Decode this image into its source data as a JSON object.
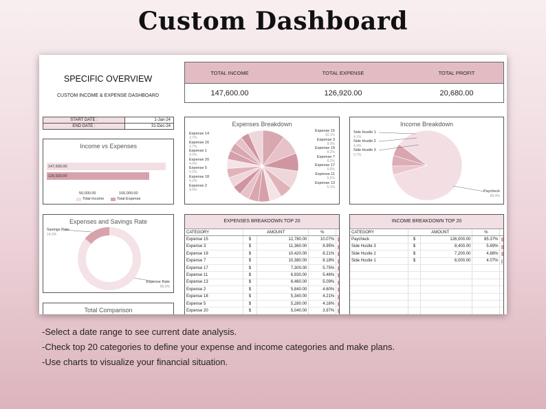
{
  "page_title": "Custom Dashboard",
  "overview": {
    "title": "SPECIFIC OVERVIEW",
    "subtitle": "CUSTOM INCOME & EXPENSE DASHBOARD"
  },
  "dates": {
    "start_label": "START DATE :",
    "start_value": "1-Jan-24",
    "end_label": "END DATE :",
    "end_value": "31-Dec-24"
  },
  "totals": {
    "income_label": "TOTAL INCOME",
    "income_value": "147,600.00",
    "expense_label": "TOTAL EXPENSE",
    "expense_value": "126,920.00",
    "profit_label": "TOTAL PROFIT",
    "profit_value": "20,680.00"
  },
  "income_vs_expenses": {
    "title": "Income vs Expenses",
    "bars": [
      {
        "label": "147,600.00",
        "value": 147600
      },
      {
        "label": "126,920.00",
        "value": 126920
      }
    ],
    "ticks": [
      "50,000.00",
      "100,000.00"
    ],
    "legend": [
      "Total Income",
      "Total Expense"
    ]
  },
  "expenses_breakdown": {
    "title": "Expenses Breakdown",
    "left_labels": [
      {
        "name": "Expense 14",
        "pct": "3.7%"
      },
      {
        "name": "Expense 16",
        "pct": "3.7%"
      },
      {
        "name": "Expense 1",
        "pct": "4.0%"
      },
      {
        "name": "Expense 20",
        "pct": "4.0%"
      },
      {
        "name": "Expense 5",
        "pct": "4.2%"
      },
      {
        "name": "Expense 18",
        "pct": "4.2%"
      },
      {
        "name": "Expense 2",
        "pct": "4.6%"
      }
    ],
    "right_labels": [
      {
        "name": "Expense 15",
        "pct": "10.1%"
      },
      {
        "name": "Expense 3",
        "pct": "9.0%"
      },
      {
        "name": "Expense 19",
        "pct": "8.2%"
      },
      {
        "name": "Expense 7",
        "pct": "8.2%"
      },
      {
        "name": "Expense 17",
        "pct": "5.8%"
      },
      {
        "name": "Expense 11",
        "pct": "5.5%"
      },
      {
        "name": "Expense 13",
        "pct": "5.1%"
      }
    ]
  },
  "income_breakdown": {
    "title": "Income Breakdown",
    "labels": [
      {
        "name": "Side Hustle 1",
        "pct": "4.1%"
      },
      {
        "name": "Side Hustle 2",
        "pct": "4.9%"
      },
      {
        "name": "Side Hustle 3",
        "pct": "5.7%"
      },
      {
        "name": "Paycheck",
        "pct": "85.4%"
      }
    ]
  },
  "savings": {
    "title": "Expenses and Savings Rate",
    "savings_label": "Savings Rate",
    "savings_pct": "14.0%",
    "savings_value": 14.0,
    "expense_label": "Expense Rate",
    "expense_pct": "86.0%"
  },
  "total_comparison": {
    "title": "Total Comparison"
  },
  "expenses_table": {
    "title": "EXPENSES BREAKDOWN TOP 20",
    "headers": [
      "CATEGORY",
      "AMOUNT",
      "%"
    ],
    "rows": [
      {
        "cat": "Expense 15",
        "cur": "$",
        "amt": "12,780.00",
        "pct": "10.07%",
        "v": 10.07
      },
      {
        "cat": "Expense 3",
        "cur": "$",
        "amt": "11,360.00",
        "pct": "8.95%",
        "v": 8.95
      },
      {
        "cat": "Expense 19",
        "cur": "$",
        "amt": "10,420.00",
        "pct": "8.21%",
        "v": 8.21
      },
      {
        "cat": "Expense 7",
        "cur": "$",
        "amt": "10,380.00",
        "pct": "8.18%",
        "v": 8.18
      },
      {
        "cat": "Expense 17",
        "cur": "$",
        "amt": "7,300.00",
        "pct": "5.75%",
        "v": 5.75
      },
      {
        "cat": "Expense 11",
        "cur": "$",
        "amt": "6,930.00",
        "pct": "5.46%",
        "v": 5.46
      },
      {
        "cat": "Expense 13",
        "cur": "$",
        "amt": "6,460.00",
        "pct": "5.09%",
        "v": 5.09
      },
      {
        "cat": "Expense 2",
        "cur": "$",
        "amt": "5,840.00",
        "pct": "4.60%",
        "v": 4.6
      },
      {
        "cat": "Expense 18",
        "cur": "$",
        "amt": "5,340.00",
        "pct": "4.21%",
        "v": 4.21
      },
      {
        "cat": "Expense 5",
        "cur": "$",
        "amt": "5,280.00",
        "pct": "4.16%",
        "v": 4.16
      },
      {
        "cat": "Expense 20",
        "cur": "$",
        "amt": "5,040.00",
        "pct": "3.97%",
        "v": 3.97
      }
    ]
  },
  "income_table": {
    "title": "INCOME BREAKDOWN TOP 20",
    "headers": [
      "CATEGORY",
      "AMOUNT",
      "%"
    ],
    "rows": [
      {
        "cat": "Paycheck",
        "cur": "$",
        "amt": "126,000.00",
        "pct": "85.37%",
        "v": 85.37
      },
      {
        "cat": "Side Hustle 3",
        "cur": "$",
        "amt": "8,400.00",
        "pct": "5.69%",
        "v": 5.69
      },
      {
        "cat": "Side Hustle 2",
        "cur": "$",
        "amt": "7,200.00",
        "pct": "4.88%",
        "v": 4.88
      },
      {
        "cat": "Side Hustle 1",
        "cur": "$",
        "amt": "6,000.00",
        "pct": "4.07%",
        "v": 4.07
      }
    ]
  },
  "bullets": [
    "-Select a date range to see current date analysis.",
    "-Check top 20 categories to define your expense and income categories and make plans.",
    "-Use charts to visualize your financial situation."
  ],
  "colors": {
    "accent": "#d8a2ac",
    "header_bg": "#e3bcc3",
    "light": "#f2dfe3"
  }
}
